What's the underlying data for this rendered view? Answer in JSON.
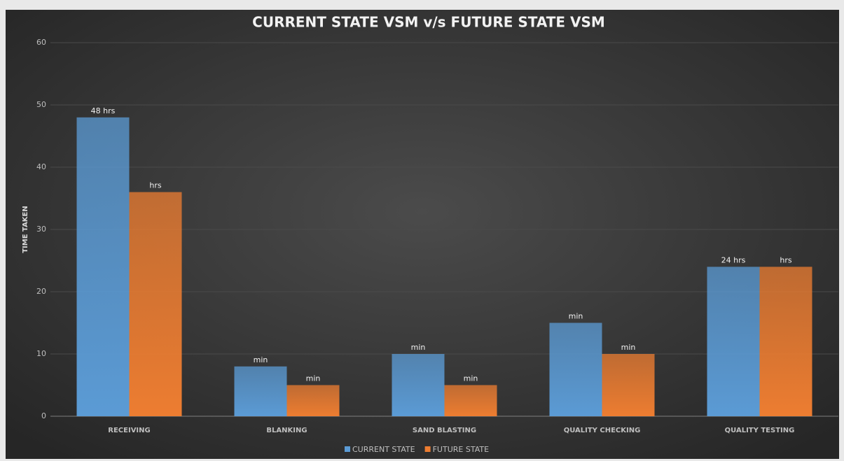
{
  "chart_data": {
    "type": "bar",
    "title": "CURRENT STATE VSM v/s FUTURE STATE VSM",
    "y_label": "TIME TAKEN",
    "categories": [
      "RECEIVING",
      "BLANKING",
      "SAND BLASTING",
      "QUALITY CHECKING",
      "QUALITY TESTING"
    ],
    "series": [
      {
        "name": "CURRENT STATE",
        "color": "#5b9bd5",
        "values": [
          48,
          8,
          10,
          15,
          24
        ],
        "value_labels": [
          "48 hrs",
          "min",
          "min",
          "min",
          "24 hrs"
        ]
      },
      {
        "name": "FUTURE STATE",
        "color": "#ed7d31",
        "values": [
          36,
          5,
          5,
          10,
          24
        ],
        "value_labels": [
          "hrs",
          "min",
          "min",
          "min",
          "hrs"
        ]
      }
    ],
    "ylim": [
      0,
      60
    ],
    "yticks": [
      0,
      10,
      20,
      30,
      40,
      50,
      60
    ],
    "grid": true,
    "legend": "bottom"
  }
}
